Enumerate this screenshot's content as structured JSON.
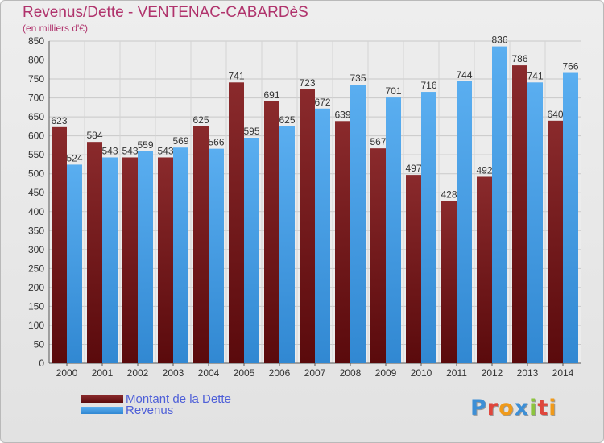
{
  "header": {
    "title": "Revenus/Dette - VENTENAC-CABARDèS",
    "subtitle": "(en milliers d'€)"
  },
  "legend": {
    "debt_label": "Montant de la Dette",
    "revenue_label": "Revenus"
  },
  "logo": {
    "text": "Proxiti",
    "letters": [
      {
        "ch": "P",
        "color": "#3d8fd6"
      },
      {
        "ch": "r",
        "color": "#e0463c"
      },
      {
        "ch": "o",
        "color": "#f09a1a"
      },
      {
        "ch": "x",
        "color": "#3d8fd6"
      },
      {
        "ch": "i",
        "color": "#8cc43e"
      },
      {
        "ch": "t",
        "color": "#e0463c"
      },
      {
        "ch": "i",
        "color": "#f09a1a"
      }
    ]
  },
  "colors": {
    "title": "#b0336c",
    "debt_bar": "#7a1f22",
    "revenue_bar": "#4ea2e6",
    "legend_text": "#4f60d8"
  },
  "chart_data": {
    "type": "bar",
    "title": "Revenus/Dette - VENTENAC-CABARDèS",
    "subtitle": "(en milliers d'€)",
    "categories": [
      "2000",
      "2001",
      "2002",
      "2003",
      "2004",
      "2005",
      "2006",
      "2007",
      "2008",
      "2009",
      "2010",
      "2011",
      "2012",
      "2013",
      "2014"
    ],
    "series": [
      {
        "name": "Montant de la Dette",
        "values": [
          623,
          584,
          543,
          543,
          625,
          741,
          691,
          723,
          639,
          567,
          497,
          428,
          492,
          786,
          640
        ]
      },
      {
        "name": "Revenus",
        "values": [
          524,
          543,
          559,
          569,
          566,
          595,
          625,
          672,
          735,
          701,
          716,
          744,
          836,
          741,
          766
        ]
      }
    ],
    "ylim": [
      0,
      850
    ],
    "ytick_step": 50,
    "grid": true,
    "legend_position": "bottom-left"
  }
}
